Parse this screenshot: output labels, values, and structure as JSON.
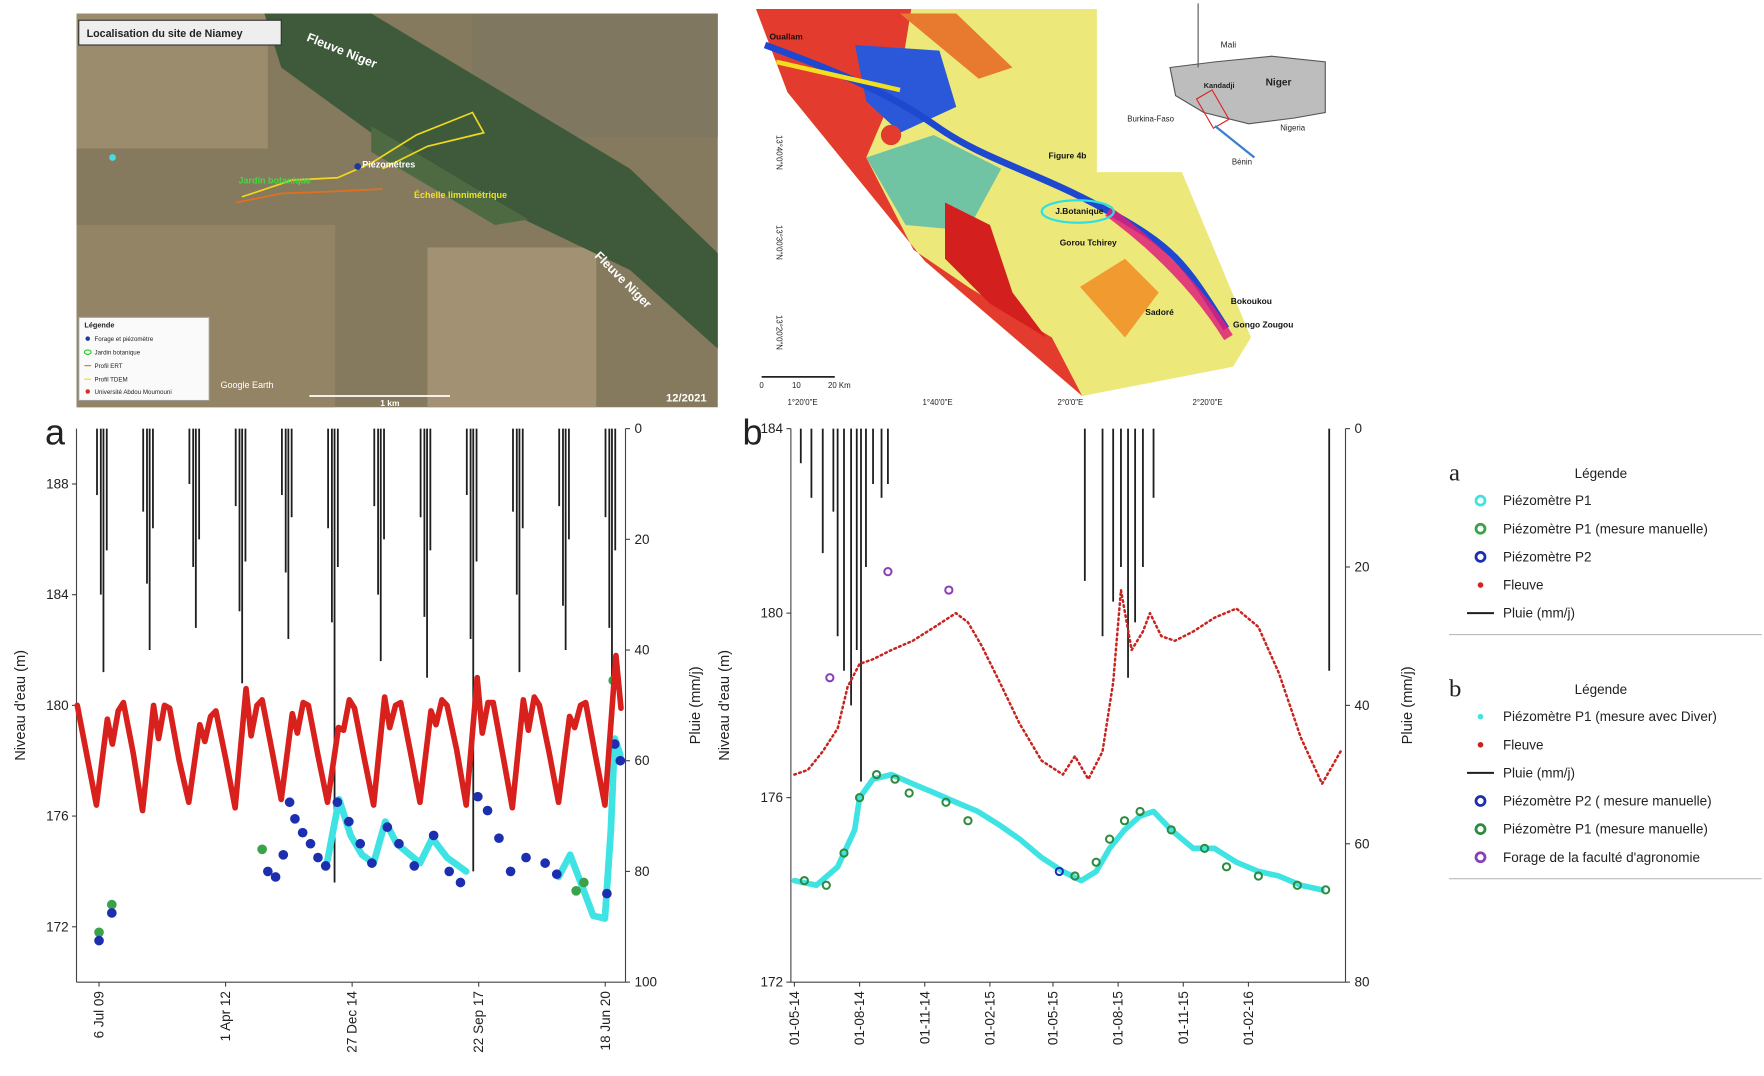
{
  "maps": [
    {
      "title": "Localisation du site de Niamey",
      "labels": [
        "Fleuve Niger",
        "Fleuve Niger",
        "Piézomètres",
        "Échelle limnimétrique",
        "Jardin botanique"
      ],
      "legend_title": "Légende",
      "legend": [
        "Forage et piézomètre",
        "Jardin botanique",
        "Profil ERT",
        "Profil TDEM",
        "Université Abdou Moumouni"
      ],
      "credit": "Google Earth",
      "scale": "1 km",
      "date": "12/2021"
    },
    {
      "places": [
        "Ouallam",
        "Figure 4b",
        "J.Botanique",
        "Gorou Tchirey",
        "Sadoré",
        "Bokoukou",
        "Gongo Zougou"
      ],
      "inset": [
        "Mali",
        "Niger",
        "Burkina-Faso",
        "Nigeria",
        "Bénin",
        "Kandadji"
      ],
      "lon": [
        "1°20'0\"E",
        "1°40'0\"E",
        "2°0'0\"E",
        "2°20'0\"E"
      ],
      "lat": [
        "13°40'0\"N",
        "13°30'0\"N",
        "13°20'0\"N"
      ],
      "scale": [
        "0",
        "10",
        "20 Km"
      ]
    }
  ],
  "chart_data": [
    {
      "type": "line",
      "panel": "a",
      "ylabel": "Niveau d'eau (m)",
      "y2label": "Pluie (mm/j)",
      "legend_title": "Légende",
      "legend_position": "right",
      "xlim": [
        "2009-01-09",
        "2020-11-25"
      ],
      "xticks": [
        {
          "value": "2009-07-06",
          "label": "6 Jul 09"
        },
        {
          "value": "2012-04-01",
          "label": "1 Apr 12"
        },
        {
          "value": "2014-12-27",
          "label": "27 Dec 14"
        },
        {
          "value": "2017-09-22",
          "label": "22 Sep 17"
        },
        {
          "value": "2020-06-18",
          "label": "18 Jun 20"
        }
      ],
      "ylim": [
        170,
        190
      ],
      "yticks": [
        172,
        176,
        180,
        184,
        188
      ],
      "y2lim": [
        0,
        100
      ],
      "y2ticks": [
        0,
        20,
        40,
        60,
        80,
        100
      ],
      "y2_inverted": true,
      "series": [
        {
          "name": "Piézomètre P1",
          "color": "#3fe3e3",
          "kind": "line",
          "width": 6,
          "legend": "circle",
          "x": [
            "2014-06-15",
            "2014-09-15",
            "2014-12-15",
            "2015-03-15",
            "2015-06-15",
            "2015-09-15",
            "2015-12-15",
            "2016-06-15",
            "2016-09-20",
            "2017-01-15",
            "2017-06-15",
            "2018-06-15",
            "2019-06-15",
            "2019-09-15",
            "2019-12-15",
            "2020-03-15",
            "2020-06-15",
            "2020-08-01",
            "2020-09-01",
            "2020-10-15"
          ],
          "values": [
            174.4,
            176.6,
            175.3,
            174.6,
            174.3,
            175.8,
            175.0,
            174.3,
            175.2,
            174.5,
            174.0,
            null,
            173.8,
            174.6,
            173.5,
            172.4,
            172.3,
            175.5,
            178.8,
            178.2
          ]
        },
        {
          "name": "Piézomètre P1 (mesure manuelle)",
          "color": "#3aa34a",
          "kind": "scatter",
          "marker": "filled",
          "legend": "circle",
          "x": [
            "2009-07-06",
            "2009-10-15",
            "2013-01-15",
            "2019-11-01",
            "2020-01-01",
            "2020-08-20"
          ],
          "values": [
            171.8,
            172.8,
            174.8,
            173.3,
            173.6,
            180.9
          ]
        },
        {
          "name": "Piézomètre P2",
          "color": "#1c2fb0",
          "kind": "scatter",
          "marker": "filled",
          "legend": "circle",
          "x": [
            "2009-07-06",
            "2009-10-15",
            "2013-03-01",
            "2013-05-01",
            "2013-07-01",
            "2013-08-20",
            "2013-10-01",
            "2013-12-01",
            "2014-02-01",
            "2014-04-01",
            "2014-06-01",
            "2014-09-01",
            "2014-12-01",
            "2015-03-01",
            "2015-06-01",
            "2015-10-01",
            "2016-01-01",
            "2016-05-01",
            "2016-10-01",
            "2017-02-01",
            "2017-05-01",
            "2017-09-15",
            "2017-12-01",
            "2018-03-01",
            "2018-06-01",
            "2018-10-01",
            "2019-03-01",
            "2019-06-01",
            "2020-07-01",
            "2020-09-01",
            "2020-10-15"
          ],
          "values": [
            171.5,
            172.5,
            174.0,
            173.8,
            174.6,
            176.5,
            175.9,
            175.4,
            175.0,
            174.5,
            174.2,
            176.5,
            175.8,
            175.0,
            174.3,
            175.6,
            175.0,
            174.2,
            175.3,
            174.0,
            173.6,
            176.7,
            176.2,
            175.2,
            174.0,
            174.5,
            174.3,
            173.9,
            173.2,
            178.6,
            178.0
          ]
        },
        {
          "name": "Fleuve",
          "color": "#d8211d",
          "kind": "line",
          "width": 5,
          "legend": "dot",
          "x": [
            "2009-01-15",
            "2009-04-01",
            "2009-06-15",
            "2009-09-10",
            "2009-10-20",
            "2009-12-05",
            "2010-01-15",
            "2010-04-01",
            "2010-06-15",
            "2010-09-10",
            "2010-10-20",
            "2010-12-05",
            "2011-01-15",
            "2011-04-01",
            "2011-06-15",
            "2011-09-10",
            "2011-10-20",
            "2011-12-05",
            "2012-01-15",
            "2012-04-01",
            "2012-06-15",
            "2012-09-10",
            "2012-10-20",
            "2012-12-05",
            "2013-01-15",
            "2013-04-01",
            "2013-06-15",
            "2013-09-10",
            "2013-10-20",
            "2013-12-05",
            "2014-01-15",
            "2014-04-01",
            "2014-06-15",
            "2014-09-10",
            "2014-10-20",
            "2014-12-05",
            "2015-01-15",
            "2015-04-01",
            "2015-06-15",
            "2015-09-10",
            "2015-10-20",
            "2015-12-05",
            "2016-01-15",
            "2016-04-01",
            "2016-06-15",
            "2016-09-10",
            "2016-10-20",
            "2016-12-05",
            "2017-01-15",
            "2017-04-01",
            "2017-06-15",
            "2017-09-10",
            "2017-10-20",
            "2017-12-05",
            "2018-01-15",
            "2018-04-01",
            "2018-06-15",
            "2018-09-10",
            "2018-10-20",
            "2018-12-05",
            "2019-01-15",
            "2019-04-01",
            "2019-06-15",
            "2019-09-10",
            "2019-10-20",
            "2019-12-05",
            "2020-01-15",
            "2020-04-01",
            "2020-06-15",
            "2020-09-10",
            "2020-10-20"
          ],
          "values": [
            180.0,
            178.2,
            176.4,
            179.5,
            178.6,
            179.8,
            180.1,
            178.3,
            176.2,
            180.0,
            178.8,
            180.0,
            179.9,
            178.0,
            176.5,
            179.3,
            178.7,
            179.6,
            179.8,
            178.1,
            176.3,
            180.6,
            178.9,
            180.0,
            180.2,
            178.4,
            176.6,
            179.7,
            179.0,
            180.1,
            180.0,
            178.2,
            176.5,
            179.2,
            179.1,
            180.2,
            179.9,
            178.1,
            176.4,
            180.3,
            179.2,
            180.0,
            180.1,
            178.3,
            176.5,
            179.8,
            179.3,
            180.2,
            180.0,
            178.4,
            176.4,
            181.0,
            179.0,
            180.1,
            180.1,
            178.2,
            176.3,
            180.2,
            179.1,
            180.3,
            180.0,
            178.3,
            176.5,
            179.6,
            179.2,
            180.0,
            180.1,
            178.2,
            176.4,
            181.8,
            179.9
          ]
        },
        {
          "name": "Pluie (mm/j)",
          "color": "#1e1e1e",
          "kind": "bar",
          "axis": "y2",
          "legend": "line",
          "x": [
            "2009-06-20",
            "2009-07-20",
            "2009-08-10",
            "2009-09-05",
            "2010-06-20",
            "2010-07-20",
            "2010-08-10",
            "2010-09-05",
            "2011-06-20",
            "2011-07-20",
            "2011-08-10",
            "2011-09-05",
            "2012-06-20",
            "2012-07-20",
            "2012-08-10",
            "2012-09-05",
            "2013-06-20",
            "2013-07-20",
            "2013-08-10",
            "2013-09-05",
            "2014-06-20",
            "2014-07-20",
            "2014-08-10",
            "2014-09-05",
            "2015-06-20",
            "2015-07-20",
            "2015-08-10",
            "2015-09-05",
            "2016-06-20",
            "2016-07-20",
            "2016-08-10",
            "2016-09-05",
            "2017-06-20",
            "2017-07-20",
            "2017-08-10",
            "2017-09-05",
            "2018-06-20",
            "2018-07-20",
            "2018-08-10",
            "2018-09-05",
            "2019-06-20",
            "2019-07-20",
            "2019-08-10",
            "2019-09-05",
            "2020-06-20",
            "2020-07-20",
            "2020-08-10",
            "2020-09-05"
          ],
          "values": [
            12,
            30,
            44,
            22,
            15,
            28,
            40,
            18,
            10,
            25,
            36,
            20,
            14,
            33,
            46,
            24,
            12,
            26,
            38,
            16,
            18,
            35,
            82,
            25,
            14,
            30,
            42,
            20,
            16,
            34,
            45,
            22,
            12,
            38,
            80,
            24,
            15,
            30,
            44,
            18,
            14,
            32,
            40,
            20,
            16,
            36,
            48,
            22
          ]
        }
      ]
    },
    {
      "type": "line",
      "panel": "b",
      "ylabel": "Niveau d'eau (m)",
      "y2label": "Pluie (mm/j)",
      "legend_title": "Légende",
      "legend_position": "right",
      "xlim": [
        "2014-04-26",
        "2016-06-17"
      ],
      "xticks": [
        {
          "value": "2014-05-01",
          "label": "01-05-14"
        },
        {
          "value": "2014-08-01",
          "label": "01-08-14"
        },
        {
          "value": "2014-11-01",
          "label": "01-11-14"
        },
        {
          "value": "2015-02-01",
          "label": "01-02-15"
        },
        {
          "value": "2015-05-01",
          "label": "01-05-15"
        },
        {
          "value": "2015-08-01",
          "label": "01-08-15"
        },
        {
          "value": "2015-11-01",
          "label": "01-11-15"
        },
        {
          "value": "2016-02-01",
          "label": "01-02-16"
        }
      ],
      "ylim": [
        172,
        184
      ],
      "yticks": [
        172,
        176,
        180,
        184
      ],
      "y2lim": [
        0,
        80
      ],
      "y2ticks": [
        0,
        20,
        40,
        60,
        80
      ],
      "y2_inverted": true,
      "series": [
        {
          "name": "Piézomètre  P1 (mesure avec Diver)",
          "color": "#3fe3e3",
          "kind": "line",
          "width": 5,
          "legend": "dot",
          "x": [
            "2014-05-01",
            "2014-06-01",
            "2014-07-01",
            "2014-07-25",
            "2014-08-01",
            "2014-08-20",
            "2014-09-15",
            "2014-10-15",
            "2014-11-15",
            "2014-12-15",
            "2015-01-15",
            "2015-02-15",
            "2015-03-15",
            "2015-04-15",
            "2015-05-15",
            "2015-06-10",
            "2015-07-01",
            "2015-07-20",
            "2015-08-10",
            "2015-09-01",
            "2015-09-20",
            "2015-10-15",
            "2015-11-15",
            "2015-12-15",
            "2016-01-15",
            "2016-02-15",
            "2016-03-15",
            "2016-04-15",
            "2016-05-15"
          ],
          "values": [
            174.2,
            174.1,
            174.5,
            175.3,
            176.0,
            176.4,
            176.5,
            176.3,
            176.1,
            175.9,
            175.7,
            175.4,
            175.1,
            174.7,
            174.4,
            174.2,
            174.4,
            174.9,
            175.3,
            175.6,
            175.7,
            175.3,
            174.9,
            174.9,
            174.6,
            174.4,
            174.3,
            174.1,
            174.0
          ]
        },
        {
          "name": "Fleuve",
          "color": "#c8231f",
          "kind": "line",
          "width": 2.2,
          "dash": true,
          "legend": "dot",
          "x": [
            "2014-05-01",
            "2014-05-20",
            "2014-06-10",
            "2014-07-01",
            "2014-07-15",
            "2014-08-01",
            "2014-08-20",
            "2014-09-15",
            "2014-10-15",
            "2014-11-15",
            "2014-12-15",
            "2015-01-01",
            "2015-01-20",
            "2015-02-15",
            "2015-03-15",
            "2015-04-15",
            "2015-05-15",
            "2015-06-01",
            "2015-06-20",
            "2015-07-10",
            "2015-07-25",
            "2015-08-05",
            "2015-08-20",
            "2015-09-05",
            "2015-09-15",
            "2015-10-01",
            "2015-10-20",
            "2015-11-15",
            "2015-12-15",
            "2016-01-15",
            "2016-02-15",
            "2016-03-15",
            "2016-04-15",
            "2016-05-15",
            "2016-06-10"
          ],
          "values": [
            176.5,
            176.6,
            177.0,
            177.5,
            178.4,
            178.9,
            179.0,
            179.2,
            179.4,
            179.7,
            180.0,
            179.8,
            179.3,
            178.5,
            177.6,
            176.8,
            176.5,
            176.9,
            176.4,
            177.0,
            178.5,
            180.5,
            179.2,
            179.6,
            180.0,
            179.5,
            179.4,
            179.6,
            179.9,
            180.1,
            179.7,
            178.7,
            177.3,
            176.3,
            177.0
          ]
        },
        {
          "name": "Pluie (mm/j)",
          "color": "#1e1e1e",
          "kind": "bar",
          "axis": "y2",
          "legend": "line",
          "x": [
            "2014-05-10",
            "2014-05-25",
            "2014-06-10",
            "2014-06-25",
            "2014-07-01",
            "2014-07-10",
            "2014-07-20",
            "2014-07-28",
            "2014-08-03",
            "2014-08-10",
            "2014-08-20",
            "2014-09-01",
            "2014-09-10",
            "2015-06-15",
            "2015-07-10",
            "2015-07-25",
            "2015-08-05",
            "2015-08-15",
            "2015-08-25",
            "2015-09-05",
            "2015-09-20",
            "2016-05-25"
          ],
          "values": [
            5,
            10,
            18,
            12,
            30,
            35,
            40,
            32,
            51,
            20,
            8,
            10,
            8,
            22,
            30,
            25,
            20,
            36,
            28,
            20,
            10,
            35
          ]
        },
        {
          "name": "Piézomètre P2 ( mesure manuelle)",
          "color": "#1c2fb0",
          "kind": "scatter",
          "marker": "open",
          "legend": "circle",
          "x": [
            "2015-05-10"
          ],
          "values": [
            174.4
          ]
        },
        {
          "name": "Piézomètre P1 (mesure manuelle)",
          "color": "#2e8b3e",
          "kind": "scatter",
          "marker": "open",
          "legend": "circle",
          "x": [
            "2014-05-15",
            "2014-06-15",
            "2014-07-10",
            "2014-08-01",
            "2014-08-25",
            "2014-09-20",
            "2014-10-10",
            "2014-12-01",
            "2015-01-01",
            "2015-06-01",
            "2015-07-01",
            "2015-07-20",
            "2015-08-10",
            "2015-09-01",
            "2015-10-15",
            "2015-12-01",
            "2016-01-01",
            "2016-02-15",
            "2016-04-10",
            "2016-05-20"
          ],
          "values": [
            174.2,
            174.1,
            174.8,
            176.0,
            176.5,
            176.4,
            176.1,
            175.9,
            175.5,
            174.3,
            174.6,
            175.1,
            175.5,
            175.7,
            175.3,
            174.9,
            174.5,
            174.3,
            174.1,
            174.0
          ]
        },
        {
          "name": "Forage de la faculté d'agronomie",
          "color": "#8a3fb5",
          "kind": "scatter",
          "marker": "open",
          "legend": "circle",
          "x": [
            "2014-06-20",
            "2014-09-10",
            "2014-12-05"
          ],
          "values": [
            178.6,
            180.9,
            180.5
          ]
        }
      ]
    }
  ]
}
